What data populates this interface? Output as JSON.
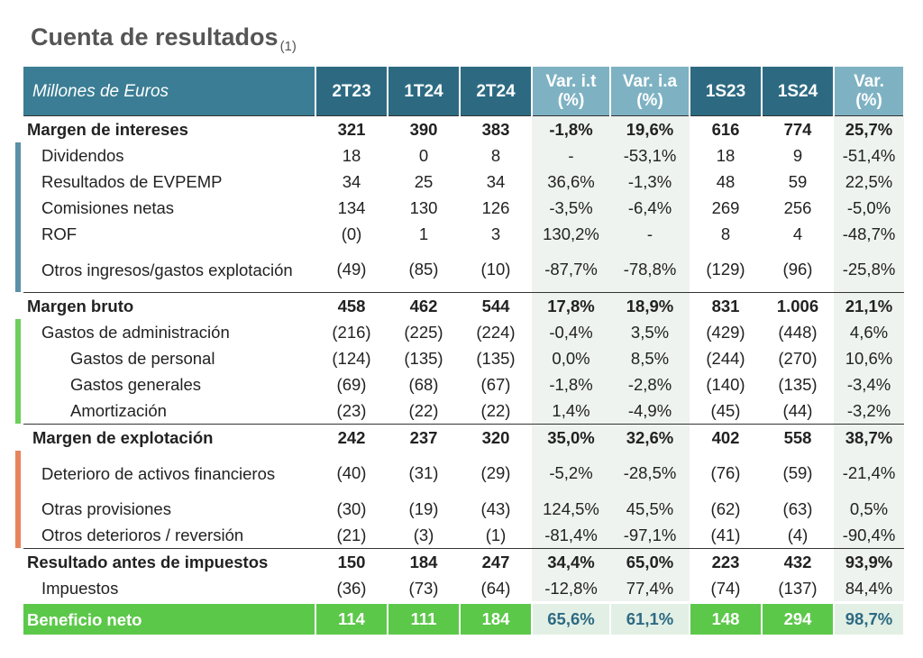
{
  "header": {
    "title": "Cuenta de resultados",
    "note": "(1)"
  },
  "table": {
    "columns": [
      "Millones de Euros",
      "2T23",
      "1T24",
      "2T24",
      "Var. i.t\n(%)",
      "Var. i.a\n(%)",
      "1S23",
      "1S24",
      "Var.\n(%)"
    ],
    "rows": [
      [
        "Margen de intereses",
        "321",
        "390",
        "383",
        "-1,8%",
        "19,6%",
        "616",
        "774",
        "25,7%"
      ],
      [
        "Dividendos",
        "18",
        "0",
        "8",
        "-",
        "-53,1%",
        "18",
        "9",
        "-51,4%"
      ],
      [
        "Resultados de EVPEMP",
        "34",
        "25",
        "34",
        "36,6%",
        "-1,3%",
        "48",
        "59",
        "22,5%"
      ],
      [
        "Comisiones netas",
        "134",
        "130",
        "126",
        "-3,5%",
        "-6,4%",
        "269",
        "256",
        "-5,0%"
      ],
      [
        "ROF",
        "(0)",
        "1",
        "3",
        "130,2%",
        "-",
        "8",
        "4",
        "-48,7%"
      ],
      [
        "Otros ingresos/gastos explotación",
        "(49)",
        "(85)",
        "(10)",
        "-87,7%",
        "-78,8%",
        "(129)",
        "(96)",
        "-25,8%"
      ],
      [
        "Margen bruto",
        "458",
        "462",
        "544",
        "17,8%",
        "18,9%",
        "831",
        "1.006",
        "21,1%"
      ],
      [
        "Gastos de administración",
        "(216)",
        "(225)",
        "(224)",
        "-0,4%",
        "3,5%",
        "(429)",
        "(448)",
        "4,6%"
      ],
      [
        "Gastos de personal",
        "(124)",
        "(135)",
        "(135)",
        "0,0%",
        "8,5%",
        "(244)",
        "(270)",
        "10,6%"
      ],
      [
        "Gastos generales",
        "(69)",
        "(68)",
        "(67)",
        "-1,8%",
        "-2,8%",
        "(140)",
        "(135)",
        "-3,4%"
      ],
      [
        "Amortización",
        "(23)",
        "(22)",
        "(22)",
        "1,4%",
        "-4,9%",
        "(45)",
        "(44)",
        "-3,2%"
      ],
      [
        "Margen de explotación",
        "242",
        "237",
        "320",
        "35,0%",
        "32,6%",
        "402",
        "558",
        "38,7%"
      ],
      [
        "Deterioro de activos financieros",
        "(40)",
        "(31)",
        "(29)",
        "-5,2%",
        "-28,5%",
        "(76)",
        "(59)",
        "-21,4%"
      ],
      [
        "Otras provisiones",
        "(30)",
        "(19)",
        "(43)",
        "124,5%",
        "45,5%",
        "(62)",
        "(63)",
        "0,5%"
      ],
      [
        "Otros deterioros / reversión",
        "(21)",
        "(3)",
        "(1)",
        "-81,4%",
        "-97,1%",
        "(41)",
        "(4)",
        "-90,4%"
      ],
      [
        "Resultado antes de impuestos",
        "150",
        "184",
        "247",
        "34,4%",
        "65,0%",
        "223",
        "432",
        "93,9%"
      ],
      [
        "Impuestos",
        "(36)",
        "(73)",
        "(64)",
        "-12,8%",
        "77,4%",
        "(74)",
        "(137)",
        "84,4%"
      ],
      [
        "Beneficio neto",
        "114",
        "111",
        "184",
        "65,6%",
        "61,1%",
        "148",
        "294",
        "98,7%"
      ]
    ]
  }
}
